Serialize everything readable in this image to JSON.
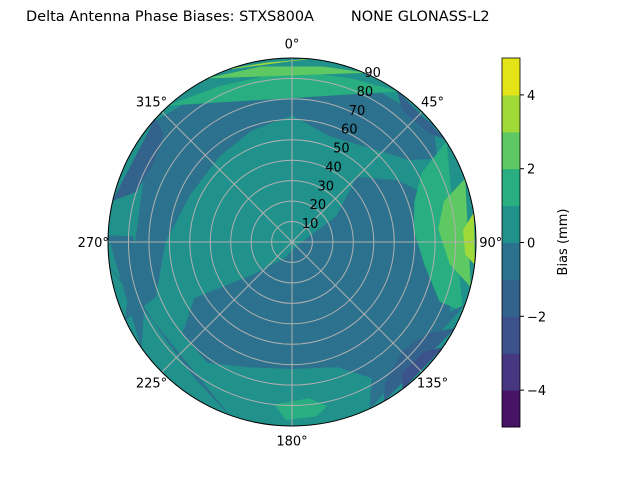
{
  "chart_data": {
    "type": "contour",
    "projection": "polar",
    "title": "Delta Antenna Phase Biases: STXS800A        NONE GLONASS-L2",
    "theta_zero": "north",
    "theta_direction": "clockwise",
    "theta_ticks": [
      "0°",
      "45°",
      "90°",
      "135°",
      "180°",
      "225°",
      "270°",
      "315°"
    ],
    "r_ticks": [
      "10",
      "20",
      "30",
      "40",
      "50",
      "60",
      "70",
      "80",
      "90"
    ],
    "rlim": [
      0,
      90
    ],
    "grid": true,
    "colorbar": {
      "label": "Bias (mm)",
      "levels": [
        -5,
        -4,
        -3,
        -2,
        -1,
        0,
        1,
        2,
        3,
        4,
        5
      ],
      "tick_labels": [
        "−4",
        "−2",
        "0",
        "2",
        "4"
      ],
      "tick_values": [
        -4,
        -2,
        0,
        2,
        4
      ],
      "colormap": "viridis",
      "colors": [
        "#471365",
        "#453781",
        "#3b528b",
        "#33638d",
        "#2c728e",
        "#21918c",
        "#28ae80",
        "#5ec962",
        "#a0da39",
        "#e5e419"
      ]
    },
    "background_level": [
      0,
      1
    ],
    "regions": [
      {
        "level": [
          -1,
          0
        ],
        "points": [
          [
            90,
            5
          ],
          [
            60,
            25
          ],
          [
            45,
            45
          ],
          [
            60,
            60
          ],
          [
            75,
            75
          ],
          [
            95,
            80
          ],
          [
            115,
            85
          ],
          [
            130,
            80
          ],
          [
            145,
            85
          ],
          [
            160,
            65
          ],
          [
            180,
            62
          ],
          [
            200,
            65
          ],
          [
            215,
            72
          ],
          [
            230,
            70
          ],
          [
            240,
            55
          ],
          [
            230,
            25
          ],
          [
            200,
            8
          ],
          [
            150,
            3
          ]
        ]
      },
      {
        "level": [
          -1,
          0
        ],
        "points": [
          [
            245,
            90
          ],
          [
            248,
            72
          ],
          [
            270,
            62
          ],
          [
            295,
            55
          ],
          [
            320,
            55
          ],
          [
            340,
            58
          ],
          [
            360,
            62
          ],
          [
            380,
            55
          ],
          [
            400,
            60
          ],
          [
            415,
            70
          ],
          [
            420,
            82
          ],
          [
            410,
            90
          ],
          [
            390,
            85
          ],
          [
            370,
            82
          ],
          [
            350,
            82
          ],
          [
            330,
            85
          ],
          [
            310,
            90
          ]
        ]
      },
      {
        "level": [
          -1,
          0
        ],
        "points": [
          [
            200,
            90
          ],
          [
            215,
            82
          ],
          [
            235,
            78
          ],
          [
            250,
            80
          ],
          [
            262,
            90
          ]
        ]
      },
      {
        "level": [
          -1,
          0
        ],
        "points": [
          [
            235,
            90
          ],
          [
            245,
            80
          ],
          [
            260,
            75
          ],
          [
            272,
            78
          ],
          [
            272,
            90
          ]
        ]
      },
      {
        "level": [
          -2,
          -1
        ],
        "points": [
          [
            283,
            90
          ],
          [
            288,
            80
          ],
          [
            300,
            78
          ],
          [
            310,
            82
          ],
          [
            312,
            90
          ]
        ]
      },
      {
        "level": [
          -2,
          -1
        ],
        "points": [
          [
            35,
            90
          ],
          [
            40,
            84
          ],
          [
            52,
            86
          ],
          [
            56,
            90
          ]
        ]
      },
      {
        "level": [
          1,
          2
        ],
        "points": [
          [
            318,
            90
          ],
          [
            335,
            84
          ],
          [
            360,
            84
          ],
          [
            380,
            85
          ],
          [
            395,
            90
          ]
        ]
      },
      {
        "level": [
          2,
          3
        ],
        "points": [
          [
            333,
            90
          ],
          [
            350,
            87
          ],
          [
            370,
            87
          ],
          [
            383,
            90
          ]
        ]
      },
      {
        "level": [
          3,
          4
        ],
        "points": [
          [
            340,
            90
          ],
          [
            352,
            88.5
          ],
          [
            362,
            89
          ],
          [
            365,
            90
          ]
        ]
      },
      {
        "level": [
          1,
          2
        ],
        "points": [
          [
            57,
            90
          ],
          [
            62,
            72
          ],
          [
            72,
            63
          ],
          [
            85,
            60
          ],
          [
            100,
            66
          ],
          [
            112,
            78
          ],
          [
            112,
            90
          ]
        ]
      },
      {
        "level": [
          2,
          3
        ],
        "points": [
          [
            70,
            90
          ],
          [
            75,
            77
          ],
          [
            85,
            72
          ],
          [
            98,
            78
          ],
          [
            104,
            90
          ]
        ]
      },
      {
        "level": [
          3,
          4
        ],
        "points": [
          [
            81,
            90
          ],
          [
            86,
            84
          ],
          [
            94,
            85
          ],
          [
            97,
            90
          ]
        ]
      },
      {
        "level": [
          -1,
          0
        ],
        "points": [
          [
            110,
            90
          ],
          [
            118,
            80
          ],
          [
            130,
            72
          ],
          [
            150,
            78
          ],
          [
            155,
            90
          ]
        ]
      },
      {
        "level": [
          -2,
          -1
        ],
        "points": [
          [
            118,
            90
          ],
          [
            124,
            80
          ],
          [
            134,
            76
          ],
          [
            146,
            82
          ],
          [
            150,
            90
          ]
        ]
      },
      {
        "level": [
          -3,
          -2
        ],
        "points": [
          [
            125,
            90
          ],
          [
            130,
            84
          ],
          [
            140,
            84
          ],
          [
            143,
            90
          ]
        ]
      },
      {
        "level": [
          1,
          2
        ],
        "points": [
          [
            168,
            82
          ],
          [
            174,
            77
          ],
          [
            186,
            80
          ],
          [
            182,
            87
          ],
          [
            172,
            86
          ]
        ]
      }
    ]
  }
}
